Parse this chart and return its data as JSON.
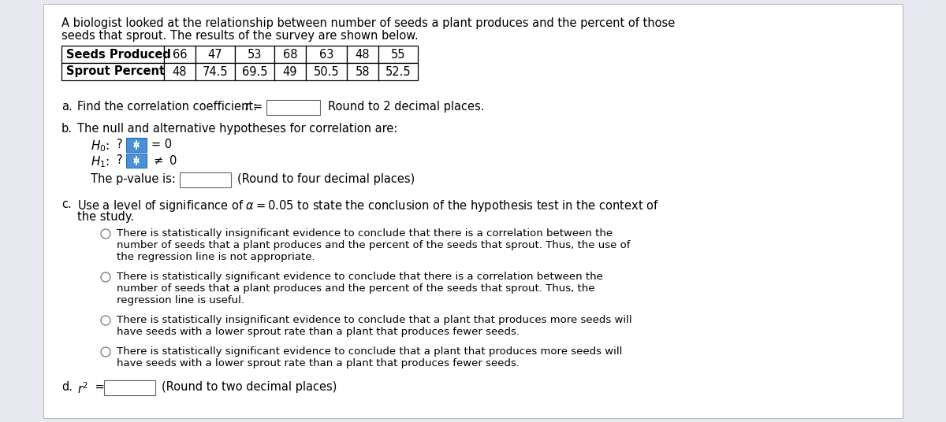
{
  "background_color": "#e8e8f0",
  "content_bg": "#ffffff",
  "title_line1": "A biologist looked at the relationship between number of seeds a plant produces and the percent of those",
  "title_line2": "seeds that sprout. The results of the survey are shown below.",
  "table_headers": [
    "Seeds Produced",
    "66",
    "47",
    "53",
    "68",
    "63",
    "48",
    "55"
  ],
  "table_row2": [
    "Sprout Percent",
    "48",
    "74.5",
    "69.5",
    "49",
    "50.5",
    "58",
    "52.5"
  ],
  "option1_line1": "There is statistically insignificant evidence to conclude that there is a correlation between the",
  "option1_line2": "number of seeds that a plant produces and the percent of the seeds that sprout. Thus, the use of",
  "option1_line3": "the regression line is not appropriate.",
  "option2_line1": "There is statistically significant evidence to conclude that there is a correlation between the",
  "option2_line2": "number of seeds that a plant produces and the percent of the seeds that sprout. Thus, the",
  "option2_line3": "regression line is useful.",
  "option3_line1": "There is statistically insignificant evidence to conclude that a plant that produces more seeds will",
  "option3_line2": "have seeds with a lower sprout rate than a plant that produces fewer seeds.",
  "option4_line1": "There is statistically significant evidence to conclude that a plant that produces more seeds will",
  "option4_line2": "have seeds with a lower sprout rate than a plant that produces fewer seeds.",
  "font_size": 10.5,
  "font_size_small": 9.5
}
